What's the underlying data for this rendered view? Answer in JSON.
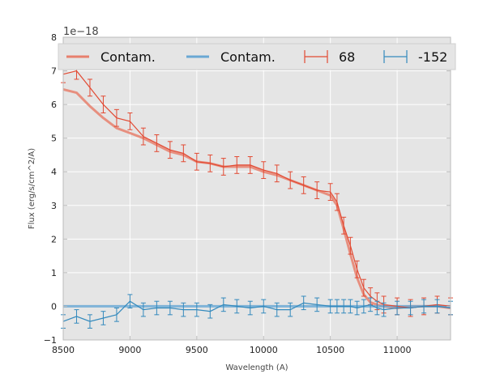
{
  "chart_data": {
    "type": "line",
    "title": "",
    "xlabel": "Wavelength (A)",
    "ylabel": "Flux (erg/s/cm^2/A)",
    "y_offset_label": "1e−18",
    "xlim": [
      8500,
      11400
    ],
    "ylim": [
      -1,
      8
    ],
    "x_ticks": [
      8500,
      9000,
      9500,
      10000,
      10500,
      11000
    ],
    "y_ticks": [
      -1,
      0,
      1,
      2,
      3,
      4,
      5,
      6,
      7,
      8
    ],
    "x_tick_labels": [
      "8500",
      "9000",
      "9500",
      "10000",
      "10500",
      "11000"
    ],
    "y_tick_labels": [
      "−1",
      "0",
      "1",
      "2",
      "3",
      "4",
      "5",
      "6",
      "7",
      "8"
    ],
    "grid": true,
    "legend_position": "top",
    "colors": {
      "series_68": "#e24a33",
      "series_152": "#348abd",
      "contam_68": "#e8806d",
      "contam_152": "#6aa8d4",
      "plot_bg": "#e5e5e5",
      "grid": "#ffffff",
      "axes_edge": "#bcbcbc"
    },
    "series": [
      {
        "name": "68",
        "kind": "errorbar",
        "contam_label": "Contam.",
        "x": [
          8500,
          8600,
          8700,
          8800,
          8900,
          9000,
          9100,
          9200,
          9300,
          9400,
          9500,
          9600,
          9700,
          9800,
          9900,
          10000,
          10100,
          10200,
          10300,
          10400,
          10500,
          10550,
          10600,
          10650,
          10700,
          10750,
          10800,
          10850,
          10900,
          11000,
          11100,
          11200,
          11300,
          11400
        ],
        "y": [
          6.9,
          7.0,
          6.5,
          6.0,
          5.6,
          5.5,
          5.05,
          4.85,
          4.65,
          4.55,
          4.3,
          4.25,
          4.15,
          4.2,
          4.2,
          4.05,
          3.95,
          3.75,
          3.6,
          3.45,
          3.4,
          3.1,
          2.4,
          1.8,
          1.1,
          0.55,
          0.3,
          0.15,
          0.05,
          0.0,
          -0.05,
          0.0,
          0.05,
          0.0
        ],
        "yerr": 0.25,
        "contam_y": [
          6.45,
          6.35,
          5.95,
          5.6,
          5.3,
          5.15,
          5.0,
          4.8,
          4.6,
          4.5,
          4.3,
          4.25,
          4.15,
          4.15,
          4.15,
          4.0,
          3.9,
          3.75,
          3.6,
          3.45,
          3.3,
          3.0,
          2.3,
          1.55,
          0.85,
          0.35,
          0.12,
          0.05,
          0.0,
          -0.05,
          0.0,
          0.0,
          0.0,
          -0.05
        ]
      },
      {
        "name": "-152",
        "kind": "errorbar",
        "contam_label": "Contam.",
        "x": [
          8500,
          8600,
          8700,
          8800,
          8900,
          9000,
          9100,
          9200,
          9300,
          9400,
          9500,
          9600,
          9700,
          9800,
          9900,
          10000,
          10100,
          10200,
          10300,
          10400,
          10500,
          10550,
          10600,
          10650,
          10700,
          10750,
          10800,
          10850,
          10900,
          11000,
          11100,
          11200,
          11300,
          11400
        ],
        "y": [
          -0.45,
          -0.3,
          -0.45,
          -0.35,
          -0.25,
          0.15,
          -0.1,
          -0.05,
          -0.05,
          -0.1,
          -0.1,
          -0.15,
          0.05,
          0.0,
          -0.05,
          0.0,
          -0.1,
          -0.1,
          0.1,
          0.05,
          0.0,
          0.0,
          0.0,
          0.0,
          -0.05,
          0.0,
          0.05,
          -0.05,
          -0.1,
          -0.05,
          -0.05,
          0.0,
          0.0,
          -0.05
        ],
        "yerr": 0.2,
        "contam_y": [
          0.0,
          0.0,
          0.0,
          0.0,
          0.0,
          0.0,
          0.0,
          0.0,
          0.0,
          0.0,
          0.0,
          0.0,
          0.0,
          0.0,
          0.0,
          0.0,
          0.0,
          0.0,
          0.0,
          0.0,
          0.0,
          0.0,
          0.0,
          0.0,
          0.0,
          0.0,
          0.0,
          0.0,
          0.0,
          0.0,
          0.0,
          0.0,
          0.0,
          0.0
        ]
      }
    ],
    "legend": [
      {
        "label": "Contam.",
        "kind": "line",
        "series": 0
      },
      {
        "label": "Contam.",
        "kind": "line",
        "series": 1
      },
      {
        "label": "68",
        "kind": "errorbar",
        "series": 0
      },
      {
        "label": "-152",
        "kind": "errorbar",
        "series": 1
      }
    ]
  }
}
